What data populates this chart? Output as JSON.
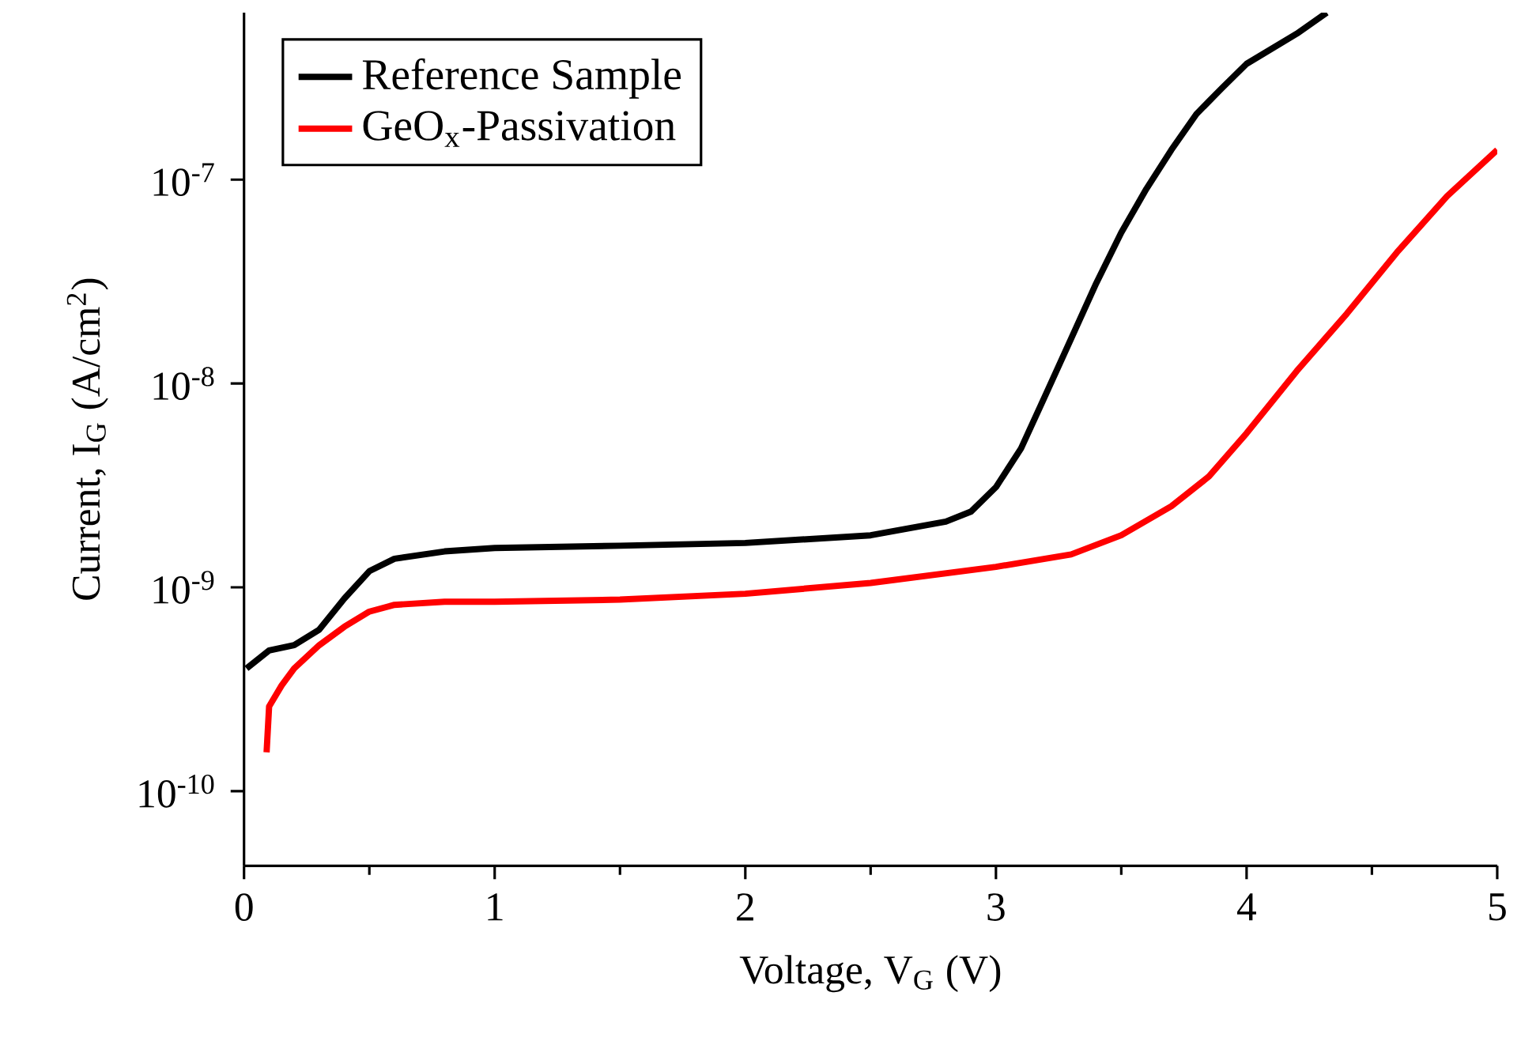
{
  "chart_data": {
    "type": "line",
    "xlabel": "Voltage, V$_{G}$ (V)",
    "ylabel": "Current, I$_{G}$ (A/cm$^{2}$)",
    "log": "y",
    "xlim": [
      0,
      5
    ],
    "xticks": [
      0,
      1,
      2,
      3,
      4,
      5
    ],
    "ylim": [
      4.3e-11,
      6.6e-07
    ],
    "yticks": [
      {
        "value": 1e-10,
        "label": "10$^{-10}$"
      },
      {
        "value": 1e-09,
        "label": "10$^{-9}$"
      },
      {
        "value": 1e-08,
        "label": "10$^{-8}$"
      },
      {
        "value": 1e-07,
        "label": "10$^{-7}$"
      }
    ],
    "legend": "top left",
    "marker": "none",
    "line_style": "solid",
    "grid": false,
    "series": [
      {
        "name": "Reference Sample",
        "color": "#000000",
        "x": [
          0.01,
          0.1,
          0.2,
          0.3,
          0.4,
          0.5,
          0.6,
          0.8,
          1.0,
          1.5,
          2.0,
          2.5,
          2.8,
          2.9,
          3.0,
          3.1,
          3.2,
          3.3,
          3.4,
          3.5,
          3.6,
          3.7,
          3.8,
          3.9,
          4.0,
          4.2,
          4.32
        ],
        "values": [
          4e-10,
          4.9e-10,
          5.2e-10,
          6.2e-10,
          8.8e-10,
          1.2e-09,
          1.38e-09,
          1.5e-09,
          1.56e-09,
          1.6e-09,
          1.65e-09,
          1.8e-09,
          2.1e-09,
          2.35e-09,
          3.1e-09,
          4.8e-09,
          8.9e-09,
          1.66e-08,
          3.1e-08,
          5.5e-08,
          9e-08,
          1.4e-07,
          2.1e-07,
          2.8e-07,
          3.7e-07,
          5.2e-07,
          6.6e-07
        ]
      },
      {
        "name": "GeO$_{x}$-Passivation",
        "color": "#ff0000",
        "x": [
          0.09,
          0.1,
          0.15,
          0.2,
          0.3,
          0.4,
          0.5,
          0.6,
          0.8,
          1.0,
          1.5,
          2.0,
          2.5,
          3.0,
          3.3,
          3.5,
          3.7,
          3.85,
          4.0,
          4.2,
          4.4,
          4.6,
          4.8,
          5.0
        ],
        "values": [
          1.55e-10,
          2.6e-10,
          3.3e-10,
          4e-10,
          5.2e-10,
          6.4e-10,
          7.6e-10,
          8.2e-10,
          8.5e-10,
          8.5e-10,
          8.7e-10,
          9.3e-10,
          1.05e-09,
          1.26e-09,
          1.45e-09,
          1.8e-09,
          2.5e-09,
          3.5e-09,
          5.7e-09,
          1.15e-08,
          2.2e-08,
          4.4e-08,
          8.3e-08,
          1.4e-07
        ]
      }
    ]
  }
}
